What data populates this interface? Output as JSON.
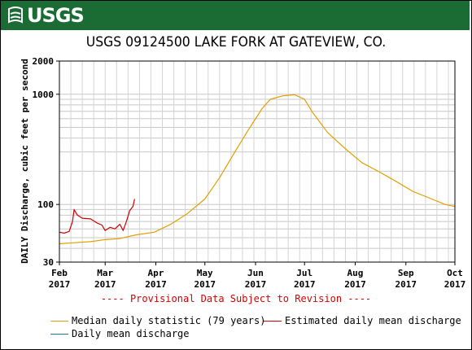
{
  "banner": {
    "logo_text": "USGS",
    "color": "#1a6b34"
  },
  "chart_data": {
    "type": "line",
    "title": "USGS 09124500 LAKE FORK AT GATEVIEW, CO.",
    "ylabel": "DAILY Discharge, cubic feet per second",
    "yscale": "log",
    "ylim": [
      30,
      2000
    ],
    "yticks": [
      "2000",
      "1000",
      "100",
      "30"
    ],
    "xlim": [
      "2017-02-01",
      "2017-10-01"
    ],
    "xticks": [
      {
        "date": "2017-02-01",
        "line1": "Feb",
        "line2": "2017"
      },
      {
        "date": "2017-03-01",
        "line1": "Mar",
        "line2": "2017"
      },
      {
        "date": "2017-04-01",
        "line1": "Apr",
        "line2": "2017"
      },
      {
        "date": "2017-05-01",
        "line1": "May",
        "line2": "2017"
      },
      {
        "date": "2017-06-01",
        "line1": "Jun",
        "line2": "2017"
      },
      {
        "date": "2017-07-01",
        "line1": "Jul",
        "line2": "2017"
      },
      {
        "date": "2017-08-01",
        "line1": "Aug",
        "line2": "2017"
      },
      {
        "date": "2017-09-01",
        "line1": "Sep",
        "line2": "2017"
      },
      {
        "date": "2017-10-01",
        "line1": "Oct",
        "line2": "2017"
      }
    ],
    "grid": true,
    "series": [
      {
        "name": "Median daily statistic (79 years)",
        "color": "#e0a000",
        "points": [
          [
            "2017-02-01",
            44
          ],
          [
            "2017-02-10",
            45
          ],
          [
            "2017-02-20",
            46
          ],
          [
            "2017-03-01",
            48
          ],
          [
            "2017-03-10",
            49
          ],
          [
            "2017-03-20",
            53
          ],
          [
            "2017-03-31",
            56
          ],
          [
            "2017-04-10",
            66
          ],
          [
            "2017-04-20",
            82
          ],
          [
            "2017-05-01",
            112
          ],
          [
            "2017-05-10",
            175
          ],
          [
            "2017-05-20",
            310
          ],
          [
            "2017-05-27",
            460
          ],
          [
            "2017-06-05",
            740
          ],
          [
            "2017-06-10",
            900
          ],
          [
            "2017-06-18",
            970
          ],
          [
            "2017-06-25",
            990
          ],
          [
            "2017-07-01",
            900
          ],
          [
            "2017-07-06",
            680
          ],
          [
            "2017-07-15",
            450
          ],
          [
            "2017-07-25",
            330
          ],
          [
            "2017-08-05",
            240
          ],
          [
            "2017-08-15",
            200
          ],
          [
            "2017-08-25",
            165
          ],
          [
            "2017-09-05",
            132
          ],
          [
            "2017-09-15",
            115
          ],
          [
            "2017-09-25",
            100
          ],
          [
            "2017-10-01",
            96
          ]
        ]
      },
      {
        "name": "Estimated daily mean discharge",
        "color": "#cc0000",
        "points": [
          [
            "2017-02-01",
            56
          ],
          [
            "2017-02-04",
            55
          ],
          [
            "2017-02-07",
            57
          ],
          [
            "2017-02-09",
            70
          ],
          [
            "2017-02-10",
            90
          ],
          [
            "2017-02-12",
            80
          ],
          [
            "2017-02-15",
            75
          ],
          [
            "2017-02-20",
            74
          ],
          [
            "2017-02-24",
            68
          ],
          [
            "2017-02-27",
            65
          ],
          [
            "2017-03-01",
            58
          ],
          [
            "2017-03-04",
            62
          ],
          [
            "2017-03-07",
            60
          ],
          [
            "2017-03-10",
            66
          ],
          [
            "2017-03-12",
            58
          ],
          [
            "2017-03-14",
            70
          ],
          [
            "2017-03-16",
            88
          ],
          [
            "2017-03-18",
            96
          ],
          [
            "2017-03-19",
            112
          ]
        ]
      },
      {
        "name": "Daily mean discharge",
        "color": "#1a7a8a",
        "points": []
      }
    ]
  },
  "provisional_note": "---- Provisional Data Subject to Revision ----"
}
